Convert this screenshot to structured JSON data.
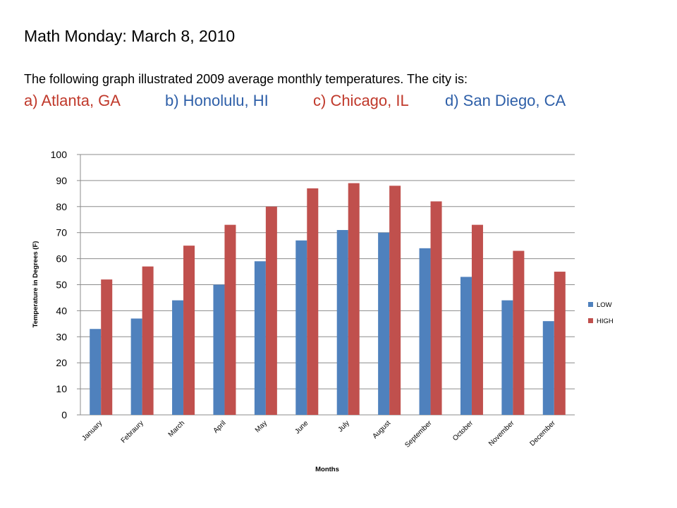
{
  "slide": {
    "title": "Math Monday: March 8, 2010",
    "question": "The following graph illustrated 2009 average monthly temperatures. The city is:",
    "options": {
      "a": "a) Atlanta, GA",
      "b": "b) Honolulu, HI",
      "c": "c) Chicago, IL",
      "d": "d) San  Diego, CA"
    }
  },
  "colors": {
    "low": "#4f81bd",
    "high": "#c0504d",
    "option_red": "#c0392b",
    "option_blue": "#2e5fa8",
    "grid": "#8c8c8c"
  },
  "chart_data": {
    "type": "bar",
    "title": "",
    "xlabel": "Months",
    "ylabel": "Temperature in Degrees (F)",
    "categories": [
      "January",
      "Febraury",
      "March",
      "April",
      "May",
      "June",
      "July",
      "August",
      "September",
      "October",
      "November",
      "December"
    ],
    "series": [
      {
        "name": "LOW",
        "values": [
          33,
          37,
          44,
          50,
          59,
          67,
          71,
          70,
          64,
          53,
          44,
          36
        ]
      },
      {
        "name": "HIGH",
        "values": [
          52,
          57,
          65,
          73,
          80,
          87,
          89,
          88,
          82,
          73,
          63,
          55
        ]
      }
    ],
    "ylim": [
      0,
      100
    ],
    "yticks": [
      0,
      10,
      20,
      30,
      40,
      50,
      60,
      70,
      80,
      90,
      100
    ],
    "grid": true,
    "legend_position": "right"
  }
}
